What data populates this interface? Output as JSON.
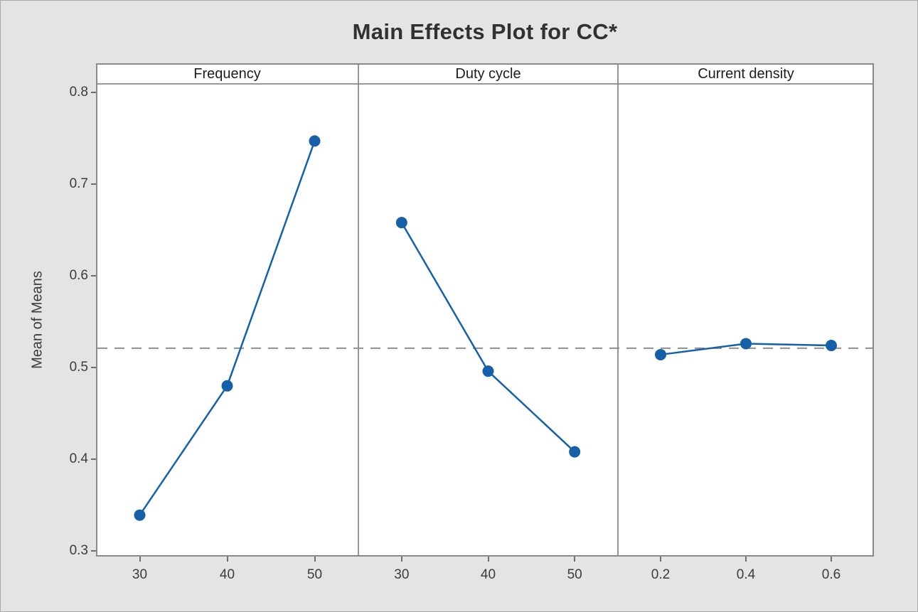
{
  "chart_data": {
    "type": "line",
    "title": "Main Effects Plot for CC*",
    "ylabel": "Mean of Means",
    "ylim": [
      0.3,
      0.8
    ],
    "yticks": [
      0.8,
      0.7,
      0.6,
      0.5,
      0.4,
      0.3
    ],
    "reference_line": 0.521,
    "grid": false,
    "legend": "none",
    "panels": [
      {
        "label": "Frequency",
        "categories": [
          "30",
          "40",
          "50"
        ],
        "values": [
          0.339,
          0.48,
          0.747
        ]
      },
      {
        "label": "Duty cycle",
        "categories": [
          "30",
          "40",
          "50"
        ],
        "values": [
          0.658,
          0.496,
          0.408
        ]
      },
      {
        "label": "Current density",
        "categories": [
          "0.2",
          "0.4",
          "0.6"
        ],
        "values": [
          0.514,
          0.526,
          0.524
        ]
      }
    ],
    "colors": {
      "line": "#1560A8",
      "marker": "#1560A8",
      "reference": "#8F8F8F",
      "panel_border": "#8A8A8A",
      "background": "#E4E4E4",
      "panel_background": "#FFFFFF"
    }
  }
}
